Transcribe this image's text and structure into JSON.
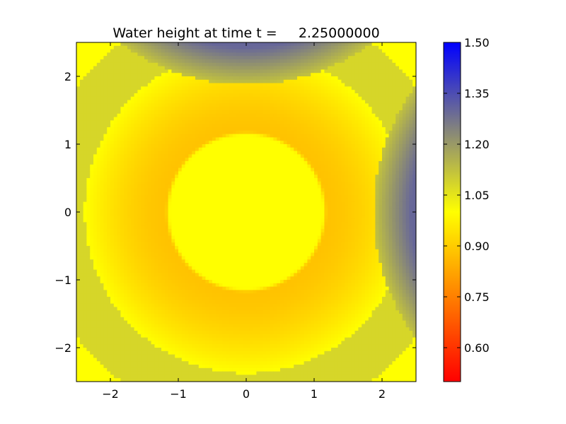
{
  "chart_data": {
    "type": "heatmap",
    "title": "Water height at time t =     2.25000000",
    "xlabel": "",
    "ylabel": "",
    "xlim": [
      -2.5,
      2.5
    ],
    "ylim": [
      -2.5,
      2.5
    ],
    "x_ticks": [
      -2,
      -1,
      0,
      1,
      2
    ],
    "x_tick_labels": [
      "−2",
      "−1",
      "0",
      "1",
      "2"
    ],
    "y_ticks": [
      -2,
      -1,
      0,
      1,
      2
    ],
    "y_tick_labels": [
      "−2",
      "−1",
      "0",
      "1",
      "2"
    ],
    "grid": false,
    "colormap": {
      "vmin": 0.5,
      "vmax": 1.5,
      "stops": [
        {
          "value": 0.5,
          "color": "#ff0000"
        },
        {
          "value": 1.0,
          "color": "#ffff00"
        },
        {
          "value": 1.25,
          "color": "#808080"
        },
        {
          "value": 1.5,
          "color": "#0000ff"
        }
      ]
    },
    "colorbar": {
      "ticks": [
        0.6,
        0.75,
        0.9,
        1.05,
        1.2,
        1.35,
        1.5
      ],
      "tick_labels": [
        "0.60",
        "0.75",
        "0.90",
        "1.05",
        "1.20",
        "1.35",
        "1.50"
      ]
    },
    "field": {
      "grid_size": 100,
      "source_center": [
        0,
        0
      ],
      "inner_plateau_radius": 1.12,
      "inner_plateau_value": 1.0,
      "trough_min_value": 0.88,
      "ring_crest_radius": 2.38,
      "ring_crest_value": 1.0,
      "outside_value": 1.08,
      "reflected_wavefronts": [
        {
          "image_source": [
            0,
            5
          ],
          "radius": 3.12,
          "edge_value": 1.12,
          "peak_value": 1.3
        },
        {
          "image_source": [
            5,
            0
          ],
          "radius": 3.12,
          "edge_value": 1.12,
          "peak_value": 1.3
        }
      ],
      "corner_value": 1.0
    }
  }
}
